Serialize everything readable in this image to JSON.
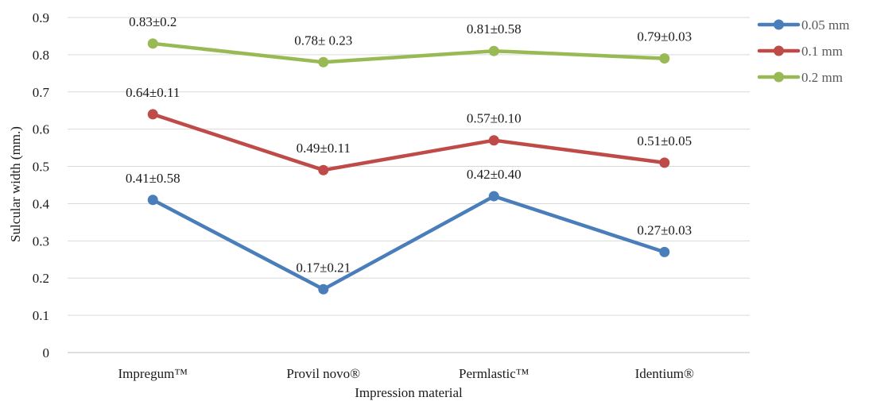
{
  "chart_data": {
    "type": "line",
    "title": "",
    "xlabel": "Impression material",
    "ylabel": "Sulcular width (mm.)",
    "ylim": [
      0,
      0.9
    ],
    "yticks": [
      "0",
      "0.1",
      "0.2",
      "0.3",
      "0.4",
      "0.5",
      "0.6",
      "0.7",
      "0.8",
      "0.9"
    ],
    "grid": true,
    "legend_position": "top-right",
    "categories": [
      "Impregum™",
      "Provil novo®",
      "Permlastic™",
      "Identium®"
    ],
    "series": [
      {
        "name": "0.05 mm",
        "color": "#4a7ebb",
        "values": [
          0.41,
          0.17,
          0.42,
          0.27
        ],
        "labels": [
          "0.41±0.58",
          "0.17±0.21",
          "0.42±0.40",
          "0.27±0.03"
        ]
      },
      {
        "name": "0.1 mm",
        "color": "#be4b48",
        "values": [
          0.64,
          0.49,
          0.57,
          0.51
        ],
        "labels": [
          "0.64±0.11",
          "0.49±0.11",
          "0.57±0.10",
          "0.51±0.05"
        ]
      },
      {
        "name": "0.2 mm",
        "color": "#98b954",
        "values": [
          0.83,
          0.78,
          0.81,
          0.79
        ],
        "labels": [
          "0.83±0.2",
          "0.78± 0.23",
          "0.81±0.58",
          "0.79±0.03"
        ]
      }
    ]
  }
}
